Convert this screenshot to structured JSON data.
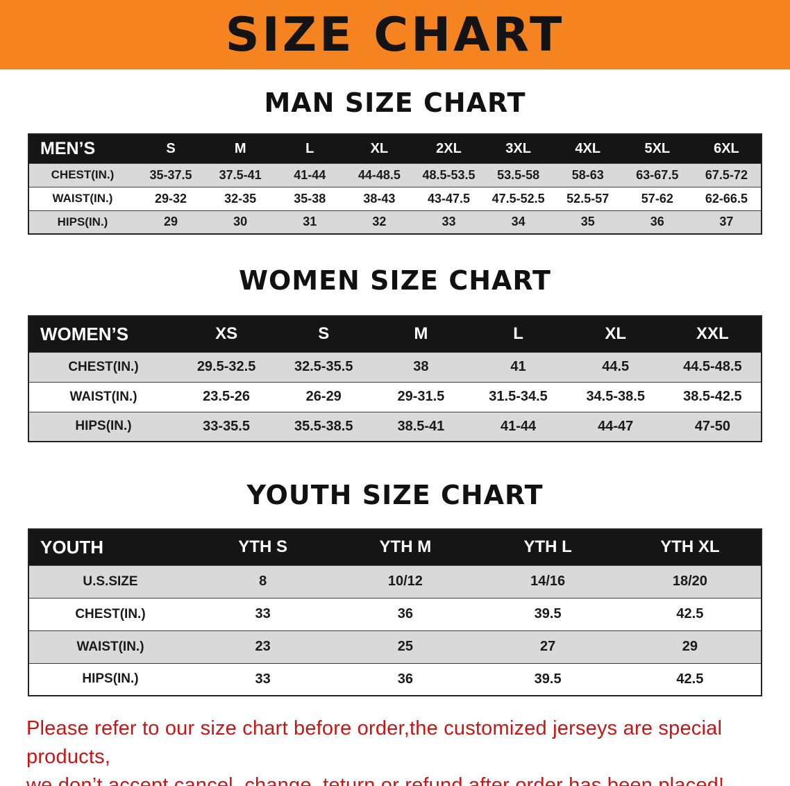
{
  "banner": {
    "title": "SIZE CHART"
  },
  "sections": {
    "men_heading": "MAN SIZE CHART",
    "women_heading": "WOMEN SIZE CHART",
    "youth_heading": "YOUTH SIZE CHART"
  },
  "tables": {
    "men": {
      "header": [
        "MEN’S",
        "S",
        "M",
        "L",
        "XL",
        "2XL",
        "3XL",
        "4XL",
        "5XL",
        "6XL"
      ],
      "rows": [
        [
          "CHEST(IN.)",
          "35-37.5",
          "37.5-41",
          "41-44",
          "44-48.5",
          "48.5-53.5",
          "53.5-58",
          "58-63",
          "63-67.5",
          "67.5-72"
        ],
        [
          "WAIST(IN.)",
          "29-32",
          "32-35",
          "35-38",
          "38-43",
          "43-47.5",
          "47.5-52.5",
          "52.5-57",
          "57-62",
          "62-66.5"
        ],
        [
          "HIPS(IN.)",
          "29",
          "30",
          "31",
          "32",
          "33",
          "34",
          "35",
          "36",
          "37"
        ]
      ]
    },
    "women": {
      "header": [
        "WOMEN’S",
        "XS",
        "S",
        "M",
        "L",
        "XL",
        "XXL"
      ],
      "rows": [
        [
          "CHEST(IN.)",
          "29.5-32.5",
          "32.5-35.5",
          "38",
          "41",
          "44.5",
          "44.5-48.5"
        ],
        [
          "WAIST(IN.)",
          "23.5-26",
          "26-29",
          "29-31.5",
          "31.5-34.5",
          "34.5-38.5",
          "38.5-42.5"
        ],
        [
          "HIPS(IN.)",
          "33-35.5",
          "35.5-38.5",
          "38.5-41",
          "41-44",
          "44-47",
          "47-50"
        ]
      ]
    },
    "youth": {
      "header": [
        "YOUTH",
        "YTH S",
        "YTH M",
        "YTH L",
        "YTH XL"
      ],
      "rows": [
        [
          "U.S.SIZE",
          "8",
          "10/12",
          "14/16",
          "18/20"
        ],
        [
          "CHEST(IN.)",
          "33",
          "36",
          "39.5",
          "42.5"
        ],
        [
          "WAIST(IN.)",
          "23",
          "25",
          "27",
          "29"
        ],
        [
          "HIPS(IN.)",
          "33",
          "36",
          "39.5",
          "42.5"
        ]
      ]
    }
  },
  "disclaimer": {
    "line1": "Please refer to our size chart before order,the customized jerseys are special products,",
    "line2": "we don’t accept cancel, change, teturn or refund after order has been placed!"
  },
  "colors": {
    "banner_orange": "#F5831F",
    "header_black": "#151515",
    "row_gray": "#D9D9D9",
    "disclaimer_red": "#CC1414"
  }
}
